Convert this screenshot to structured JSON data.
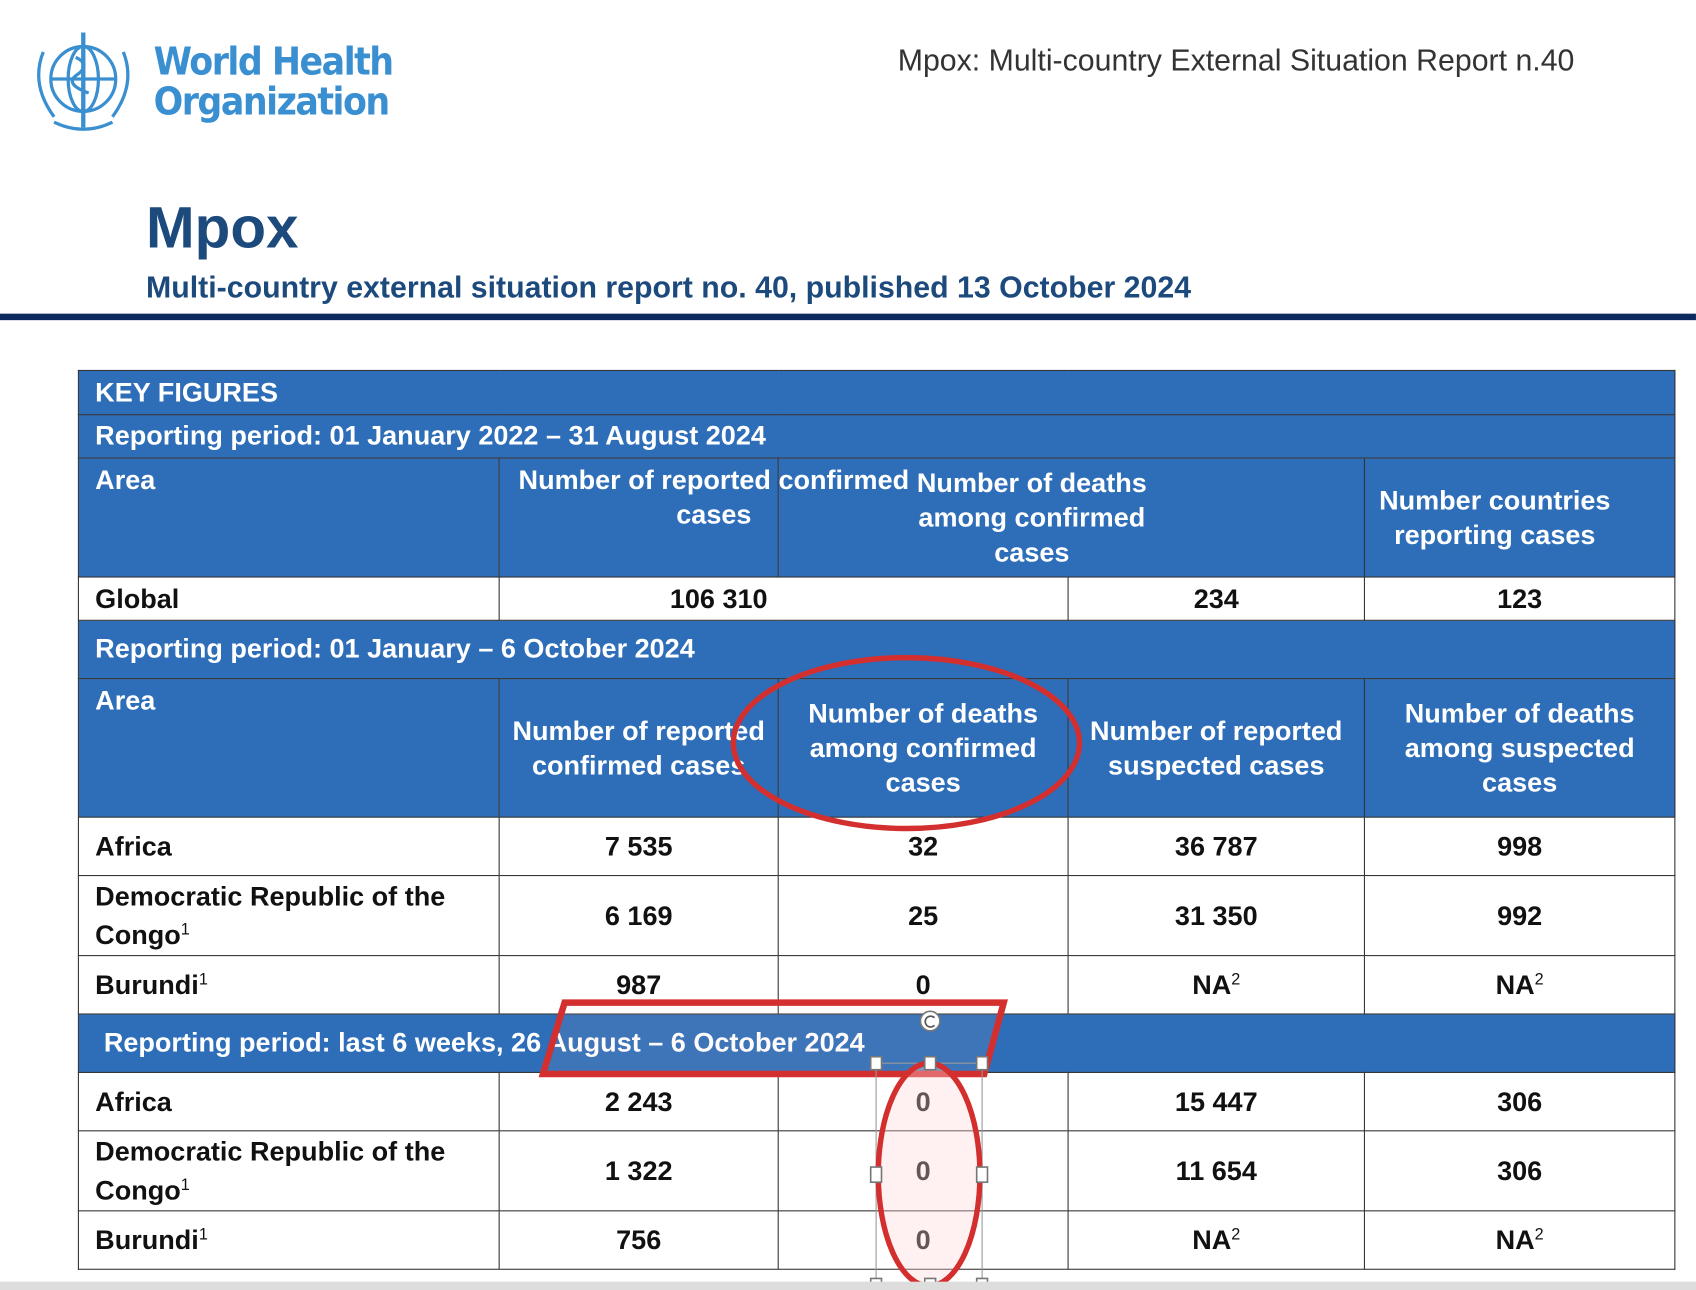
{
  "header": {
    "logo": {
      "line1": "World Health",
      "line2": "Organization",
      "icon": "who-emblem-icon",
      "color": "#3a8fd0"
    },
    "running_title": "Mpox: Multi-country External Situation Report n.40"
  },
  "title": "Mpox",
  "subtitle": "Multi-country external situation report no. 40, published 13 October 2024",
  "table": {
    "key_figures": "KEY FIGURES",
    "section1": {
      "period": "Reporting period: 01 January 2022 – 31 August 2024",
      "headers": [
        "Area",
        "Number of reported confirmed cases",
        "Number of deaths among confirmed cases",
        "Number countries reporting cases"
      ],
      "rows": [
        {
          "area": "Global",
          "cells": [
            "106 310",
            "234",
            "123"
          ]
        }
      ]
    },
    "section2": {
      "period": "Reporting period: 01 January – 6 October 2024",
      "headers": [
        "Area",
        "Number of reported confirmed cases",
        "Number of deaths among confirmed cases",
        "Number of reported suspected cases",
        "Number of deaths among suspected cases"
      ],
      "rows": [
        {
          "area": "Africa",
          "sup": "",
          "cells": [
            "7 535",
            "32",
            "36 787",
            "998"
          ]
        },
        {
          "area": "Democratic Republic of the Congo",
          "sup": "1",
          "cells": [
            "6 169",
            "25",
            "31 350",
            "992"
          ]
        },
        {
          "area": "Burundi",
          "sup": "1",
          "cells": [
            "987",
            "0",
            "NA",
            "NA"
          ],
          "cell_sups": [
            "",
            "",
            "2",
            "2"
          ]
        }
      ]
    },
    "section3": {
      "period": "Reporting period: last 6 weeks, 26 August – 6 October 2024",
      "rows": [
        {
          "area": "Africa",
          "sup": "",
          "cells": [
            "2 243",
            "0",
            "15 447",
            "306"
          ]
        },
        {
          "area": "Democratic Republic of the Congo",
          "sup": "1",
          "cells": [
            "1 322",
            "0",
            "11 654",
            "306"
          ]
        },
        {
          "area": "Burundi",
          "sup": "1",
          "cells": [
            "756",
            "0",
            "NA",
            "NA"
          ],
          "cell_sups": [
            "",
            "",
            "2",
            "2"
          ]
        }
      ]
    }
  },
  "colors": {
    "table_blue": "#2e6eb8",
    "title_navy": "#1d4a7c",
    "annotation_red": "#d32f2f"
  }
}
